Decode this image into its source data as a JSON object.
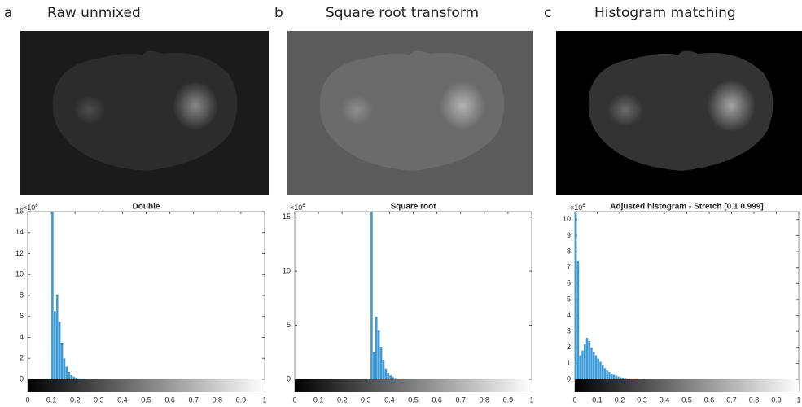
{
  "panels": [
    {
      "letter": "a",
      "heading": "Raw unmixed"
    },
    {
      "letter": "b",
      "heading": "Square root transform"
    },
    {
      "letter": "c",
      "heading": "Histogram matching"
    }
  ],
  "chart_data": [
    {
      "type": "histogram",
      "title": "Double",
      "y_multiplier": {
        "base": "×10",
        "power": "6"
      },
      "bins": [
        0.1,
        0.11,
        0.12,
        0.13,
        0.14,
        0.15,
        0.16,
        0.17,
        0.18,
        0.19,
        0.2,
        0.21,
        0.22,
        0.23,
        0.24,
        0.25
      ],
      "values": [
        16,
        6.5,
        8.1,
        5.5,
        3.5,
        2.0,
        1.2,
        0.7,
        0.4,
        0.25,
        0.15,
        0.1,
        0.06,
        0.04,
        0.02
      ],
      "color": "#3d9ad6",
      "xlim": [
        0,
        1
      ],
      "ylim": [
        0,
        16
      ],
      "xticks": [
        0,
        0.1,
        0.2,
        0.3,
        0.4,
        0.5,
        0.6,
        0.7,
        0.8,
        0.9,
        1
      ],
      "yticks": [
        0,
        2,
        4,
        6,
        8,
        10,
        12,
        14,
        16
      ],
      "colorbar": "gray"
    },
    {
      "type": "histogram",
      "title": "Square root",
      "y_multiplier": {
        "base": "×10",
        "power": "6"
      },
      "bins": [
        0.32,
        0.33,
        0.34,
        0.35,
        0.36,
        0.37,
        0.38,
        0.39,
        0.4,
        0.41,
        0.42,
        0.43,
        0.44,
        0.45,
        0.46,
        0.47,
        0.48,
        0.49,
        0.5
      ],
      "values": [
        15.5,
        2.5,
        5.8,
        4.5,
        3.0,
        1.8,
        1.0,
        0.6,
        0.35,
        0.2,
        0.12,
        0.08,
        0.05,
        0.03,
        0.02,
        0.01,
        0.01,
        0.005
      ],
      "color": "#3d9ad6",
      "xlim": [
        0,
        1
      ],
      "ylim": [
        0,
        15.5
      ],
      "xticks": [
        0,
        0.1,
        0.2,
        0.3,
        0.4,
        0.5,
        0.6,
        0.7,
        0.8,
        0.9,
        1
      ],
      "yticks": [
        0,
        5,
        10,
        15
      ],
      "colorbar": "gray"
    },
    {
      "type": "histogram",
      "title": "Adjusted histogram - Stretch [0.1 0.999]",
      "y_multiplier": {
        "base": "×10",
        "power": "6"
      },
      "bins": [
        0,
        0.01,
        0.02,
        0.03,
        0.04,
        0.05,
        0.06,
        0.07,
        0.08,
        0.09,
        0.1,
        0.11,
        0.12,
        0.13,
        0.14,
        0.15,
        0.16,
        0.17,
        0.18,
        0.19,
        0.2,
        0.21,
        0.22,
        0.23,
        0.24,
        0.25,
        0.26,
        0.27,
        0.28,
        0.29,
        0.3
      ],
      "values": [
        10.4,
        7.4,
        1.5,
        1.8,
        2.2,
        2.6,
        2.4,
        2.0,
        1.7,
        1.5,
        1.3,
        1.1,
        0.9,
        0.7,
        0.55,
        0.45,
        0.35,
        0.28,
        0.22,
        0.17,
        0.13,
        0.1,
        0.08,
        0.06,
        0.05,
        0.04,
        0.03,
        0.02,
        0.02,
        0.01
      ],
      "color": "#3d9ad6",
      "xlim": [
        0,
        1
      ],
      "ylim": [
        0,
        10.5
      ],
      "xticks": [
        0,
        0.1,
        0.2,
        0.3,
        0.4,
        0.5,
        0.6,
        0.7,
        0.8,
        0.9,
        1
      ],
      "yticks": [
        0,
        1,
        2,
        3,
        4,
        5,
        6,
        7,
        8,
        9,
        10
      ],
      "colorbar": "gray"
    }
  ]
}
